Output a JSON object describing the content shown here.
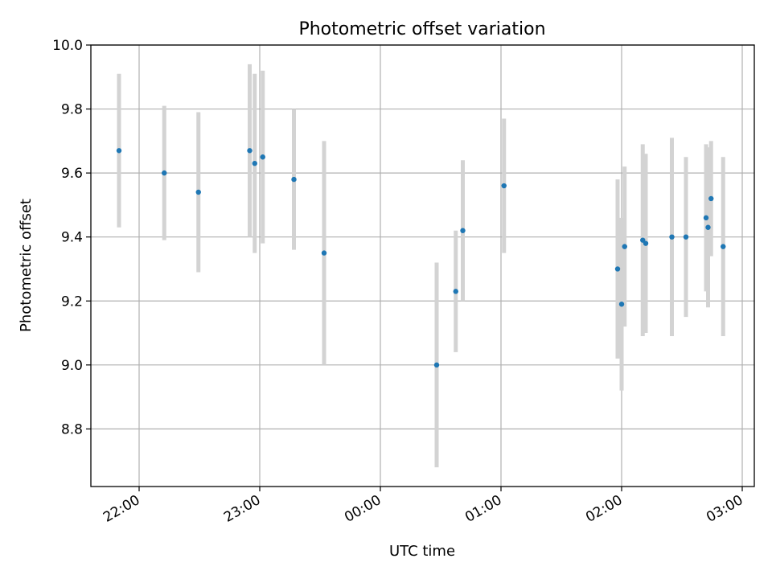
{
  "chart_data": {
    "type": "scatter",
    "title": "Photometric offset variation",
    "xlabel": "UTC time",
    "ylabel": "Photometric offset",
    "x_axis": {
      "type": "time",
      "start": "2023-01-01T21:36:00",
      "end": "2023-01-02T03:06:00",
      "ticks": [
        {
          "time": "2023-01-01T22:00:00",
          "label": "22:00"
        },
        {
          "time": "2023-01-01T23:00:00",
          "label": "23:00"
        },
        {
          "time": "2023-01-02T00:00:00",
          "label": "00:00"
        },
        {
          "time": "2023-01-02T01:00:00",
          "label": "01:00"
        },
        {
          "time": "2023-01-02T02:00:00",
          "label": "02:00"
        },
        {
          "time": "2023-01-02T03:00:00",
          "label": "03:00"
        }
      ]
    },
    "ylim": [
      8.62,
      10.0
    ],
    "yticks": [
      8.8,
      9.0,
      9.2,
      9.4,
      9.6,
      9.8,
      10.0
    ],
    "ytick_labels": [
      "8.8",
      "9.0",
      "9.2",
      "9.4",
      "9.6",
      "9.8",
      "10.0"
    ],
    "grid": true,
    "point_color": "#1f77b4",
    "errorbar_color": "#d3d3d3",
    "points": [
      {
        "x": "2023-01-01T21:50:00",
        "y": 9.67,
        "err": 0.24
      },
      {
        "x": "2023-01-01T22:12:30",
        "y": 9.6,
        "err": 0.21
      },
      {
        "x": "2023-01-01T22:29:30",
        "y": 9.54,
        "err": 0.25
      },
      {
        "x": "2023-01-01T22:55:00",
        "y": 9.67,
        "err": 0.27
      },
      {
        "x": "2023-01-01T22:57:30",
        "y": 9.63,
        "err": 0.28
      },
      {
        "x": "2023-01-01T23:01:30",
        "y": 9.65,
        "err": 0.27
      },
      {
        "x": "2023-01-01T23:17:00",
        "y": 9.58,
        "err": 0.22
      },
      {
        "x": "2023-01-01T23:32:00",
        "y": 9.35,
        "err": 0.35
      },
      {
        "x": "2023-01-02T00:28:00",
        "y": 9.0,
        "err": 0.32
      },
      {
        "x": "2023-01-02T00:37:30",
        "y": 9.23,
        "err": 0.19
      },
      {
        "x": "2023-01-02T00:41:00",
        "y": 9.42,
        "err": 0.22
      },
      {
        "x": "2023-01-02T01:01:30",
        "y": 9.56,
        "err": 0.21
      },
      {
        "x": "2023-01-02T01:58:00",
        "y": 9.3,
        "err": 0.28
      },
      {
        "x": "2023-01-02T02:00:00",
        "y": 9.19,
        "err": 0.27
      },
      {
        "x": "2023-01-02T02:01:30",
        "y": 9.37,
        "err": 0.25
      },
      {
        "x": "2023-01-02T02:10:30",
        "y": 9.39,
        "err": 0.3
      },
      {
        "x": "2023-01-02T02:12:00",
        "y": 9.38,
        "err": 0.28
      },
      {
        "x": "2023-01-02T02:25:00",
        "y": 9.4,
        "err": 0.31
      },
      {
        "x": "2023-01-02T02:32:00",
        "y": 9.4,
        "err": 0.25
      },
      {
        "x": "2023-01-02T02:42:00",
        "y": 9.46,
        "err": 0.23
      },
      {
        "x": "2023-01-02T02:43:00",
        "y": 9.43,
        "err": 0.25
      },
      {
        "x": "2023-01-02T02:44:30",
        "y": 9.52,
        "err": 0.18
      },
      {
        "x": "2023-01-02T02:50:30",
        "y": 9.37,
        "err": 0.28
      }
    ]
  }
}
